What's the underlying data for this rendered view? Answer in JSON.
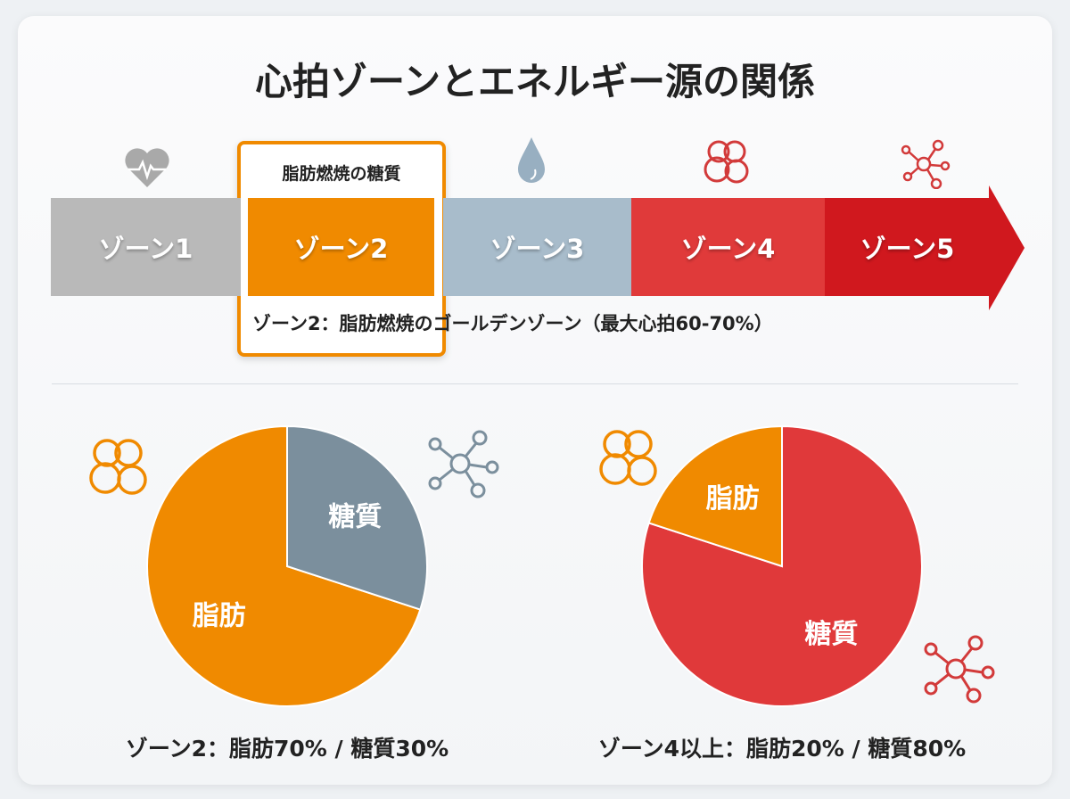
{
  "title": "心拍ゾーンとエネルギー源の関係",
  "zones": [
    {
      "label": "ゾーン1",
      "color": "#b9b9b9",
      "icon": "heart-pulse-icon"
    },
    {
      "label": "ゾーン2",
      "color": "#f08a00",
      "icon": "none"
    },
    {
      "label": "ゾーン3",
      "color": "#a8bccb",
      "icon": "water-drop-icon"
    },
    {
      "label": "ゾーン4",
      "color": "#e03a3a",
      "icon": "fat-cells-icon"
    },
    {
      "label": "ゾーン5",
      "color": "#d0181e",
      "icon": "molecule-icon"
    }
  ],
  "highlight": {
    "label": "脂肪燃焼の糖質",
    "caption": "ゾーン2：脂肪燃焼のゴールデンゾーン（最大心拍60-70%）"
  },
  "chart_data": [
    {
      "type": "pie",
      "slices": [
        {
          "label": "脂肪",
          "value": 70,
          "color": "#f08a00"
        },
        {
          "label": "糖質",
          "value": 30,
          "color": "#7b8f9d"
        }
      ],
      "caption": "ゾーン2：脂肪70% / 糖質30%"
    },
    {
      "type": "pie",
      "slices": [
        {
          "label": "糖質",
          "value": 80,
          "color": "#e0393a"
        },
        {
          "label": "脂肪",
          "value": 20,
          "color": "#f08a00"
        }
      ],
      "caption": "ゾーン4以上：脂肪20% / 糖質80%"
    }
  ]
}
